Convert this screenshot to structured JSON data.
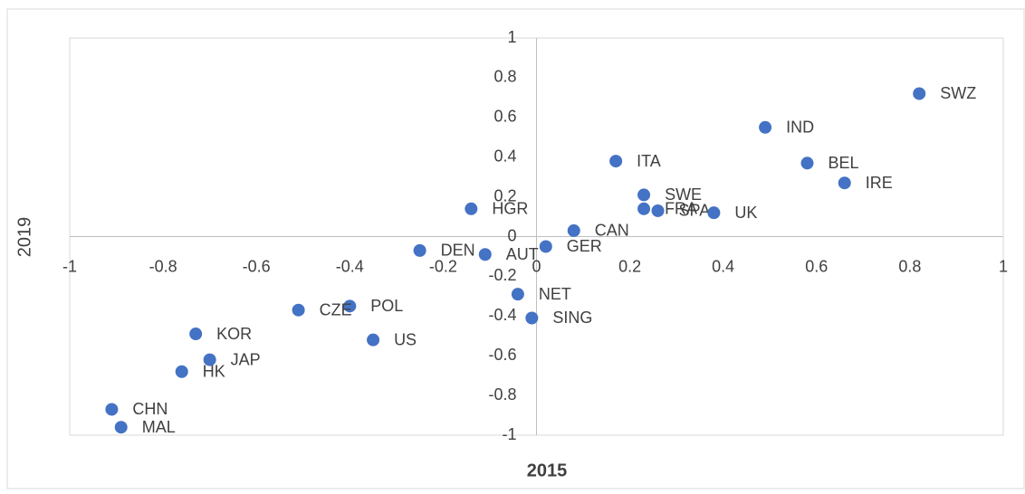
{
  "chart_data": {
    "type": "scatter",
    "x_label": "2015",
    "y_label": "2019",
    "color": "#4472c4",
    "labels": [
      "SWZ",
      "IND",
      "BEL",
      "IRE",
      "ITA",
      "SWE",
      "FRA",
      "SPA",
      "UK",
      "HGR",
      "CAN",
      "GER",
      "DEN",
      "AUT",
      "NET",
      "SING",
      "POL",
      "CZE",
      "US",
      "KOR",
      "JAP",
      "HK",
      "CHN",
      "MAL"
    ],
    "x": [
      0.82,
      0.49,
      0.58,
      0.66,
      0.17,
      0.23,
      0.23,
      0.26,
      0.38,
      -0.14,
      0.08,
      0.02,
      -0.25,
      -0.11,
      -0.04,
      -0.01,
      -0.4,
      -0.51,
      -0.35,
      -0.73,
      -0.7,
      -0.76,
      -0.91,
      -0.89
    ],
    "values": [
      0.72,
      0.55,
      0.37,
      0.27,
      0.38,
      0.21,
      0.14,
      0.13,
      0.12,
      0.14,
      0.03,
      -0.05,
      -0.07,
      -0.09,
      -0.29,
      -0.41,
      -0.35,
      -0.37,
      -0.52,
      -0.49,
      -0.62,
      -0.68,
      -0.87,
      -0.96
    ],
    "xlim": [
      -1,
      1
    ],
    "ylim": [
      -1,
      1
    ],
    "xticks": [
      -1,
      -0.8,
      -0.6,
      -0.4,
      -0.2,
      0,
      0.2,
      0.4,
      0.6,
      0.8,
      1
    ],
    "yticks": [
      -1,
      -0.8,
      -0.6,
      -0.4,
      -0.2,
      0,
      0.2,
      0.4,
      0.6,
      0.8,
      1
    ]
  }
}
